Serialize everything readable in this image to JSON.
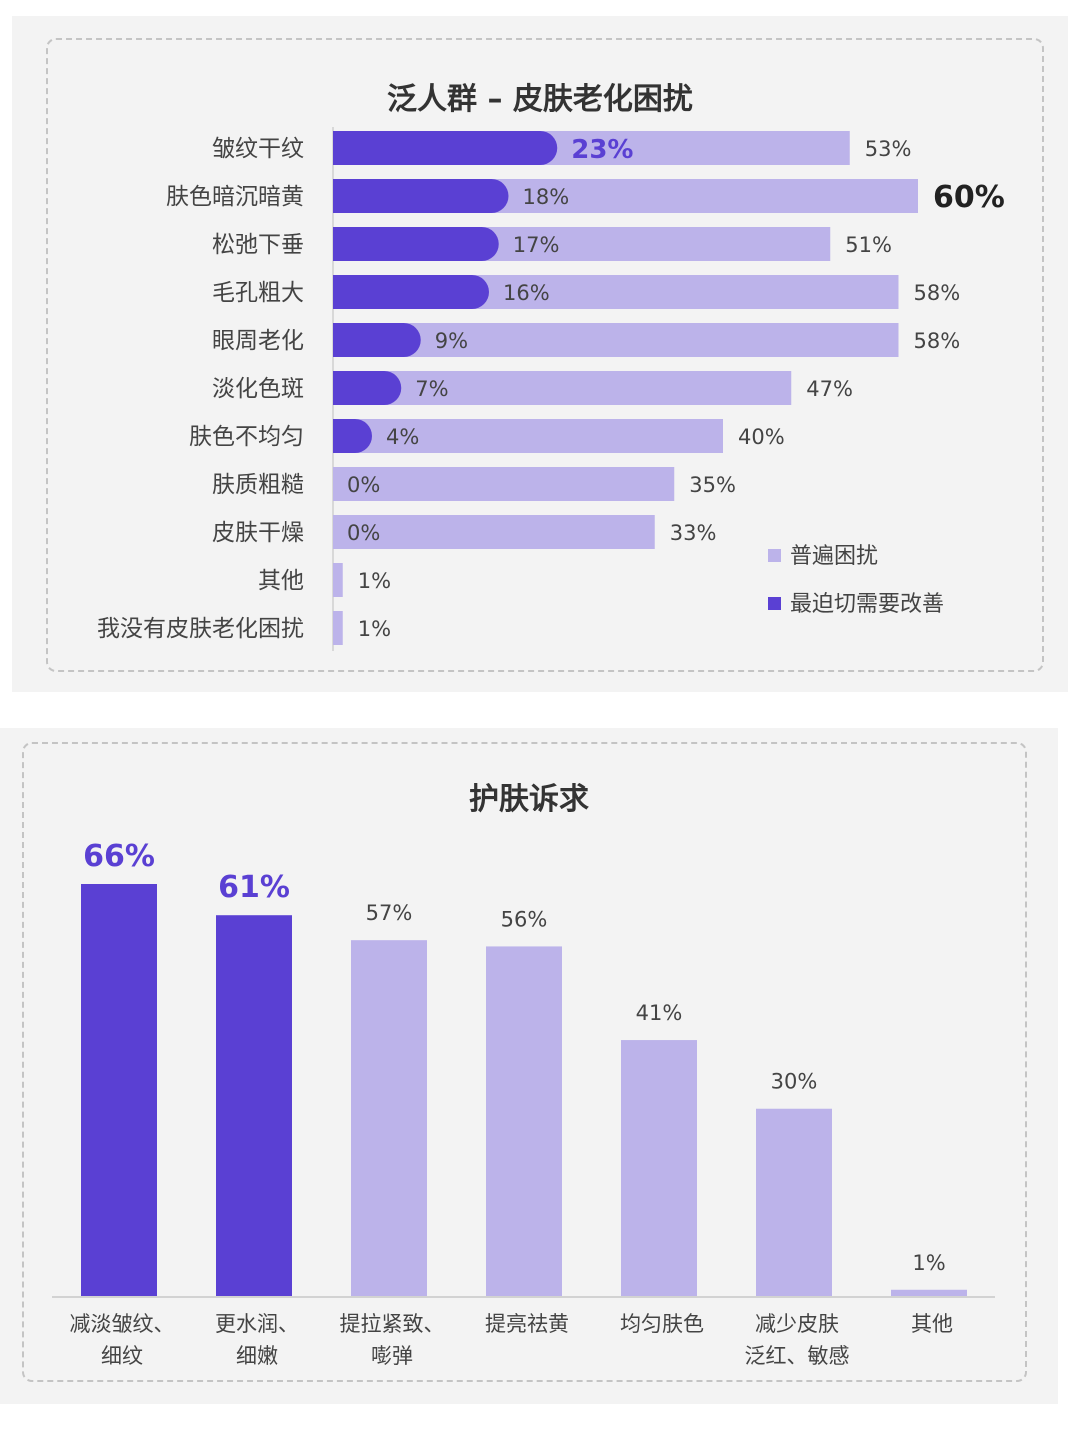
{
  "colors": {
    "general": "#bcb3ea",
    "urgent": "#5a40d3",
    "accent_text": "#5a40d3",
    "label_text": "#444444"
  },
  "chart_data": [
    {
      "type": "bar",
      "orientation": "horizontal",
      "title": "泛人群 – 皮肤老化困扰",
      "categories": [
        "皱纹干纹",
        "肤色暗沉暗黄",
        "松弛下垂",
        "毛孔粗大",
        "眼周老化",
        "淡化色斑",
        "肤色不均匀",
        "肤质粗糙",
        "皮肤干燥",
        "其他",
        "我没有皮肤老化困扰"
      ],
      "series": [
        {
          "name": "普遍困扰",
          "values": [
            53,
            60,
            51,
            58,
            58,
            47,
            40,
            35,
            33,
            1,
            1
          ],
          "labels": [
            "53%",
            "60%",
            "51%",
            "58%",
            "58%",
            "47%",
            "40%",
            "35%",
            "33%",
            "1%",
            "1%"
          ]
        },
        {
          "name": "最迫切需要改善",
          "values": [
            23,
            18,
            17,
            16,
            9,
            7,
            4,
            0,
            0,
            null,
            null
          ],
          "labels": [
            "23%",
            "18%",
            "17%",
            "16%",
            "9%",
            "7%",
            "4%",
            "0%",
            "0%",
            "",
            ""
          ]
        }
      ],
      "highlight": {
        "general_index": 1,
        "urgent_index": 0
      },
      "xlim": [
        0,
        60
      ],
      "legend_position": "bottom-right",
      "grid": false
    },
    {
      "type": "bar",
      "orientation": "vertical",
      "title": "护肤诉求",
      "categories": [
        [
          "减淡皱纹、",
          "细纹"
        ],
        [
          "更水润、",
          "细嫩"
        ],
        [
          "提拉紧致、",
          "嘭弹"
        ],
        [
          "提亮祛黄"
        ],
        [
          "均匀肤色"
        ],
        [
          "减少皮肤",
          "泛红、敏感"
        ],
        [
          "其他"
        ]
      ],
      "values": [
        66,
        61,
        57,
        56,
        41,
        30,
        1
      ],
      "labels": [
        "66%",
        "61%",
        "57%",
        "56%",
        "41%",
        "30%",
        "1%"
      ],
      "highlighted": [
        true,
        true,
        false,
        false,
        false,
        false,
        false
      ],
      "ylim": [
        0,
        66
      ],
      "grid": false
    }
  ]
}
